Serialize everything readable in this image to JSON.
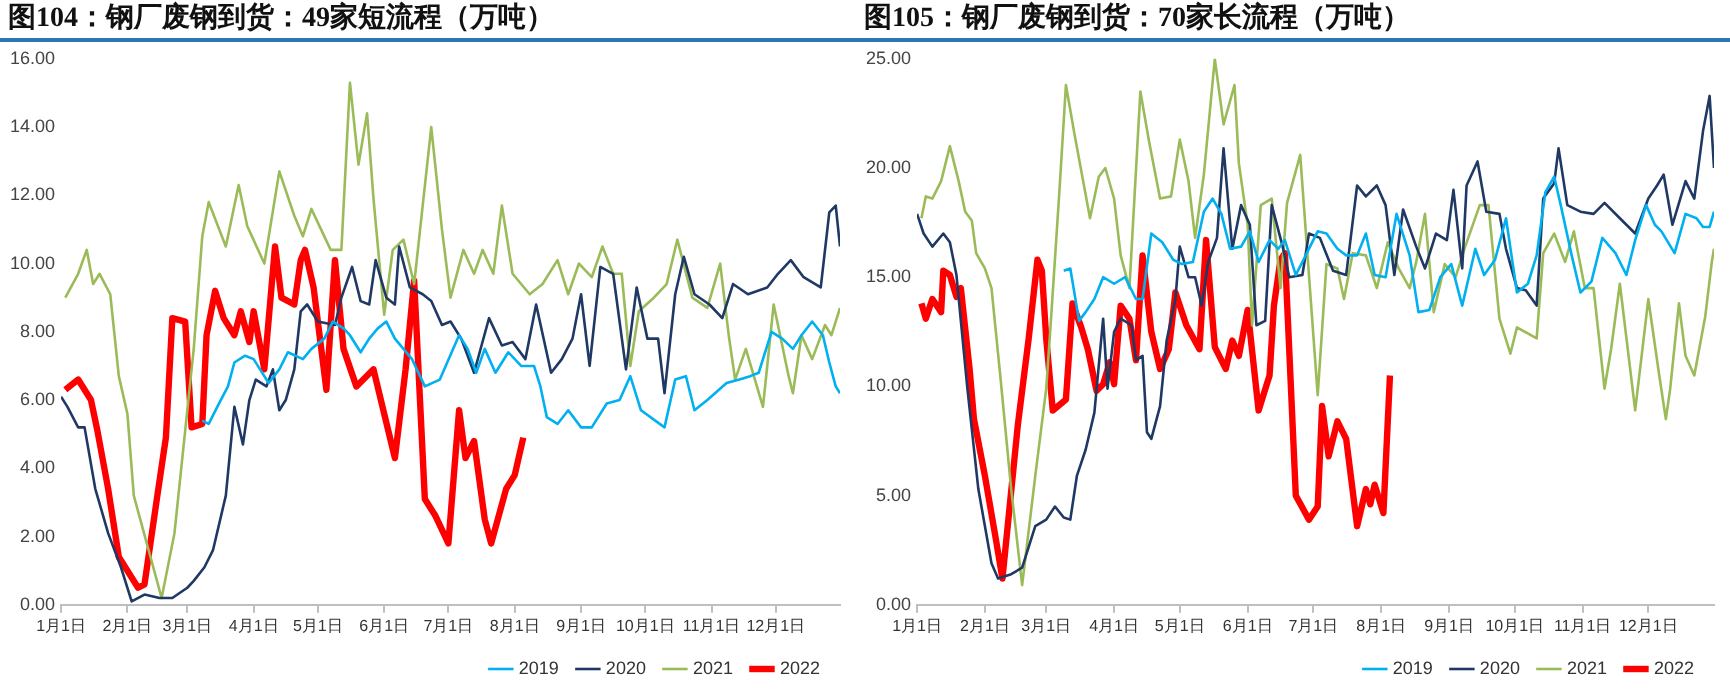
{
  "chart_data": [
    {
      "type": "line",
      "title": "图104：钢厂废钢到货：49家短流程（万吨）",
      "legend": "bottom",
      "xlim": [
        "--01-01",
        "--12-31"
      ],
      "xticks": [
        {
          "value": "--01-01",
          "label": "1月1日"
        },
        {
          "value": "--02-01",
          "label": "2月1日"
        },
        {
          "value": "--03-01",
          "label": "3月1日"
        },
        {
          "value": "--04-01",
          "label": "4月1日"
        },
        {
          "value": "--05-01",
          "label": "5月1日"
        },
        {
          "value": "--06-01",
          "label": "6月1日"
        },
        {
          "value": "--07-01",
          "label": "7月1日"
        },
        {
          "value": "--08-01",
          "label": "8月1日"
        },
        {
          "value": "--09-01",
          "label": "9月1日"
        },
        {
          "value": "--10-01",
          "label": "10月1日"
        },
        {
          "value": "--11-01",
          "label": "11月1日"
        },
        {
          "value": "--12-01",
          "label": "12月1日"
        }
      ],
      "ylim": [
        0,
        16
      ],
      "yticks": [
        {
          "value": 0,
          "label": "0.00"
        },
        {
          "value": 2,
          "label": "2.00"
        },
        {
          "value": 4,
          "label": "4.00"
        },
        {
          "value": 6,
          "label": "6.00"
        },
        {
          "value": 8,
          "label": "8.00"
        },
        {
          "value": 10,
          "label": "10.00"
        },
        {
          "value": 12,
          "label": "12.00"
        },
        {
          "value": 14,
          "label": "14.00"
        },
        {
          "value": 16,
          "label": "16.00"
        }
      ],
      "series": [
        {
          "name": "2019",
          "color": "#00b0f0",
          "x": [
            "--03-08",
            "--03-11",
            "--03-15",
            "--03-20",
            "--03-23",
            "--03-28",
            "--04-01",
            "--04-04",
            "--04-08",
            "--04-13",
            "--04-17",
            "--04-24",
            "--04-28",
            "--05-04",
            "--05-08",
            "--05-13",
            "--05-16",
            "--05-21",
            "--05-25",
            "--05-29",
            "--06-02",
            "--06-06",
            "--06-14",
            "--06-20",
            "--06-27",
            "--07-06",
            "--07-10",
            "--07-14",
            "--07-18",
            "--07-23",
            "--07-29",
            "--08-04",
            "--08-10",
            "--08-13",
            "--08-16",
            "--08-21",
            "--08-26",
            "--09-01",
            "--09-06",
            "--09-13",
            "--09-19",
            "--09-24",
            "--09-29",
            "--10-10",
            "--10-15",
            "--10-20",
            "--10-24",
            "--10-30",
            "--11-08",
            "--11-14",
            "--11-19",
            "--11-23",
            "--11-29",
            "--12-04",
            "--12-09",
            "--12-13",
            "--12-18",
            "--12-23",
            "--12-26",
            "--12-29",
            "--12-31"
          ],
          "values": [
            5.4,
            5.3,
            5.8,
            6.4,
            7.1,
            7.3,
            7.2,
            6.9,
            6.5,
            6.9,
            7.4,
            7.2,
            7.5,
            7.8,
            8.3,
            8.1,
            7.9,
            7.4,
            7.8,
            8.1,
            8.3,
            7.8,
            7.2,
            6.4,
            6.6,
            7.9,
            7.5,
            6.8,
            7.5,
            6.8,
            7.4,
            7.0,
            7.0,
            6.4,
            5.5,
            5.3,
            5.7,
            5.2,
            5.2,
            5.9,
            6.0,
            6.7,
            5.7,
            5.2,
            6.6,
            6.7,
            5.7,
            6.0,
            6.5,
            6.6,
            6.7,
            6.8,
            8.0,
            7.8,
            7.5,
            7.9,
            8.3,
            7.9,
            7.1,
            6.4,
            6.2
          ]
        },
        {
          "name": "2020",
          "color": "#1f3864",
          "x": [
            "--01-01",
            "--01-04",
            "--01-09",
            "--01-12",
            "--01-17",
            "--01-23",
            "--01-29",
            "--02-03",
            "--02-09",
            "--02-16",
            "--02-22",
            "--03-01",
            "--03-04",
            "--03-09",
            "--03-13",
            "--03-19",
            "--03-23",
            "--03-27",
            "--03-30",
            "--04-02",
            "--04-07",
            "--04-10",
            "--04-13",
            "--04-16",
            "--04-20",
            "--04-23",
            "--04-26",
            "--05-01",
            "--05-09",
            "--05-12",
            "--05-17",
            "--05-21",
            "--05-25",
            "--05-28",
            "--06-02",
            "--06-06",
            "--06-08",
            "--06-13",
            "--06-19",
            "--06-23",
            "--06-28",
            "--07-02",
            "--07-07",
            "--07-13",
            "--07-20",
            "--07-26",
            "--07-31",
            "--08-06",
            "--08-11",
            "--08-18",
            "--08-23",
            "--08-28",
            "--09-01",
            "--09-05",
            "--09-10",
            "--09-16",
            "--09-22",
            "--09-27",
            "--10-02",
            "--10-07",
            "--10-10",
            "--10-15",
            "--10-19",
            "--10-24",
            "--10-31",
            "--11-06",
            "--11-11",
            "--11-18",
            "--11-27",
            "--12-02",
            "--12-08",
            "--12-14",
            "--12-22",
            "--12-26",
            "--12-29",
            "--12-31"
          ],
          "values": [
            6.1,
            5.8,
            5.2,
            5.2,
            3.4,
            2.1,
            1.1,
            0.1,
            0.3,
            0.2,
            0.2,
            0.5,
            0.7,
            1.1,
            1.6,
            3.2,
            5.8,
            4.7,
            6.0,
            6.6,
            6.4,
            6.9,
            5.7,
            6.0,
            6.9,
            8.6,
            8.8,
            8.3,
            8.2,
            9.0,
            9.9,
            8.9,
            8.8,
            10.1,
            9.0,
            8.8,
            10.5,
            9.3,
            9.1,
            8.9,
            8.2,
            8.3,
            7.8,
            6.8,
            8.4,
            7.6,
            7.7,
            7.2,
            8.8,
            6.8,
            7.2,
            7.8,
            9.1,
            7.0,
            9.9,
            9.7,
            6.9,
            9.3,
            7.8,
            7.8,
            6.2,
            9.1,
            10.2,
            9.1,
            8.8,
            8.4,
            9.4,
            9.1,
            9.3,
            9.7,
            10.1,
            9.6,
            9.3,
            11.5,
            11.7,
            10.5
          ]
        },
        {
          "name": "2021",
          "color": "#9bbb59",
          "x": [
            "--01-03",
            "--01-09",
            "--01-13",
            "--01-16",
            "--01-19",
            "--01-24",
            "--01-28",
            "--02-01",
            "--02-04",
            "--02-17",
            "--02-23",
            "--03-04",
            "--03-08",
            "--03-11",
            "--03-19",
            "--03-25",
            "--03-29",
            "--04-06",
            "--04-13",
            "--04-20",
            "--04-24",
            "--04-28",
            "--05-07",
            "--05-12",
            "--05-16",
            "--05-20",
            "--05-24",
            "--05-27",
            "--06-01",
            "--06-05",
            "--06-10",
            "--06-15",
            "--06-23",
            "--06-28",
            "--07-02",
            "--07-08",
            "--07-13",
            "--07-17",
            "--07-22",
            "--07-26",
            "--07-31",
            "--08-08",
            "--08-14",
            "--08-21",
            "--08-26",
            "--08-31",
            "--09-06",
            "--09-11",
            "--09-16",
            "--09-20",
            "--09-24",
            "--09-28",
            "--10-05",
            "--10-11",
            "--10-16",
            "--10-23",
            "--10-30",
            "--11-05",
            "--11-09",
            "--11-12",
            "--11-17",
            "--11-25",
            "--11-30",
            "--12-07",
            "--12-09",
            "--12-13",
            "--12-18",
            "--12-24",
            "--12-27",
            "--12-31"
          ],
          "values": [
            9.0,
            9.7,
            10.4,
            9.4,
            9.7,
            9.1,
            6.7,
            5.6,
            3.2,
            0.2,
            2.1,
            7.5,
            10.8,
            11.8,
            10.5,
            12.3,
            11.1,
            10.0,
            12.7,
            11.4,
            10.8,
            11.6,
            10.4,
            10.4,
            15.3,
            12.9,
            14.4,
            11.9,
            8.5,
            10.4,
            10.7,
            9.4,
            14.0,
            11.0,
            9.0,
            10.4,
            9.7,
            10.4,
            9.7,
            11.7,
            9.7,
            9.1,
            9.4,
            10.1,
            9.1,
            10.0,
            9.6,
            10.5,
            9.7,
            9.7,
            7.0,
            8.6,
            9.0,
            9.4,
            10.7,
            9.0,
            8.7,
            10.0,
            7.9,
            6.6,
            7.5,
            5.8,
            8.8,
            6.7,
            6.2,
            7.9,
            7.2,
            8.2,
            7.9,
            8.7
          ]
        },
        {
          "name": "2022",
          "color": "#ff0000",
          "x": [
            "--01-03",
            "--01-09",
            "--01-15",
            "--01-18",
            "--01-23",
            "--01-28",
            "--02-06",
            "--02-09",
            "--02-15",
            "--02-19",
            "--02-22",
            "--02-28",
            "--03-03",
            "--03-08",
            "--03-10",
            "--03-14",
            "--03-18",
            "--03-23",
            "--03-26",
            "--03-30",
            "--04-01",
            "--04-06",
            "--04-11",
            "--04-14",
            "--04-20",
            "--04-23",
            "--04-25",
            "--04-29",
            "--05-05",
            "--05-09",
            "--05-13",
            "--05-19",
            "--05-27",
            "--06-01",
            "--06-06",
            "--06-11",
            "--06-15",
            "--06-20",
            "--06-25",
            "--07-01",
            "--07-06",
            "--07-09",
            "--07-13",
            "--07-18",
            "--07-21",
            "--07-28",
            "--08-01",
            "--08-05"
          ],
          "values": [
            6.3,
            6.6,
            6.0,
            5.1,
            3.4,
            1.4,
            0.5,
            0.6,
            3.2,
            4.9,
            8.4,
            8.3,
            5.2,
            5.3,
            7.9,
            9.2,
            8.4,
            7.9,
            8.6,
            7.7,
            8.6,
            6.9,
            10.5,
            9.0,
            8.8,
            10.1,
            10.4,
            9.3,
            6.3,
            10.1,
            7.5,
            6.4,
            6.9,
            5.6,
            4.3,
            6.9,
            9.5,
            3.1,
            2.6,
            1.8,
            5.7,
            4.3,
            4.8,
            2.5,
            1.8,
            3.4,
            3.8,
            4.9
          ]
        }
      ]
    },
    {
      "type": "line",
      "title": "图105：钢厂废钢到货：70家长流程（万吨）",
      "legend": "bottom",
      "xlim": [
        "--01-01",
        "--12-31"
      ],
      "xticks": [
        {
          "value": "--01-01",
          "label": "1月1日"
        },
        {
          "value": "--02-01",
          "label": "2月1日"
        },
        {
          "value": "--03-01",
          "label": "3月1日"
        },
        {
          "value": "--04-01",
          "label": "4月1日"
        },
        {
          "value": "--05-01",
          "label": "5月1日"
        },
        {
          "value": "--06-01",
          "label": "6月1日"
        },
        {
          "value": "--07-01",
          "label": "7月1日"
        },
        {
          "value": "--08-01",
          "label": "8月1日"
        },
        {
          "value": "--09-01",
          "label": "9月1日"
        },
        {
          "value": "--10-01",
          "label": "10月1日"
        },
        {
          "value": "--11-01",
          "label": "11月1日"
        },
        {
          "value": "--12-01",
          "label": "12月1日"
        }
      ],
      "ylim": [
        0,
        25
      ],
      "yticks": [
        {
          "value": 0,
          "label": "0.00"
        },
        {
          "value": 5,
          "label": "5.00"
        },
        {
          "value": 10,
          "label": "10.00"
        },
        {
          "value": 15,
          "label": "15.00"
        },
        {
          "value": 20,
          "label": "20.00"
        },
        {
          "value": 25,
          "label": "25.00"
        }
      ],
      "series": [
        {
          "name": "2019",
          "color": "#00b0f0",
          "x": [
            "--03-09",
            "--03-12",
            "--03-16",
            "--03-19",
            "--03-23",
            "--03-27",
            "--04-01",
            "--04-06",
            "--04-11",
            "--04-14",
            "--04-18",
            "--04-23",
            "--04-28",
            "--05-02",
            "--05-07",
            "--05-12",
            "--05-16",
            "--05-20",
            "--05-24",
            "--05-29",
            "--06-02",
            "--06-06",
            "--06-11",
            "--06-15",
            "--06-18",
            "--06-23",
            "--06-28",
            "--07-03",
            "--07-07",
            "--07-12",
            "--07-16",
            "--07-21",
            "--07-25",
            "--07-29",
            "--08-03",
            "--08-08",
            "--08-14",
            "--08-18",
            "--08-23",
            "--08-28",
            "--09-02",
            "--09-07",
            "--09-13",
            "--09-17",
            "--09-22",
            "--09-27",
            "--10-02",
            "--10-07",
            "--10-11",
            "--10-15",
            "--10-19",
            "--10-22",
            "--10-27",
            "--10-31",
            "--11-05",
            "--11-10",
            "--11-16",
            "--11-21",
            "--11-25",
            "--11-30",
            "--12-04",
            "--12-07",
            "--12-13",
            "--12-18",
            "--12-23",
            "--12-26",
            "--12-29",
            "--12-31"
          ],
          "values": [
            15.3,
            15.4,
            13.0,
            13.4,
            14.0,
            15.0,
            14.7,
            15.0,
            14.0,
            14.0,
            17.0,
            16.6,
            15.8,
            15.6,
            15.7,
            18.0,
            18.6,
            17.9,
            16.3,
            16.4,
            17.1,
            15.7,
            16.7,
            16.3,
            16.7,
            15.1,
            16.1,
            17.1,
            17.0,
            16.3,
            16.0,
            16.0,
            17.0,
            15.1,
            15.0,
            17.9,
            16.0,
            13.4,
            13.5,
            15.0,
            15.6,
            13.7,
            16.3,
            15.1,
            15.8,
            17.7,
            14.3,
            14.7,
            16.0,
            18.9,
            19.6,
            18.3,
            16.0,
            14.3,
            14.8,
            16.8,
            16.1,
            15.1,
            16.7,
            18.3,
            17.4,
            17.1,
            16.1,
            17.9,
            17.7,
            17.3,
            17.3,
            18.0
          ]
        },
        {
          "name": "2020",
          "color": "#1f3864",
          "x": [
            "--01-01",
            "--01-04",
            "--01-08",
            "--01-13",
            "--01-16",
            "--01-19",
            "--01-24",
            "--01-29",
            "--02-04",
            "--02-07",
            "--02-13",
            "--02-18",
            "--02-24",
            "--03-01",
            "--03-05",
            "--03-09",
            "--03-12",
            "--03-15",
            "--03-19",
            "--03-23",
            "--03-27",
            "--03-29",
            "--04-01",
            "--04-04",
            "--04-09",
            "--04-11",
            "--04-14",
            "--04-16",
            "--04-18",
            "--04-22",
            "--04-25",
            "--04-29",
            "--05-01",
            "--05-05",
            "--05-08",
            "--05-11",
            "--05-14",
            "--05-18",
            "--05-21",
            "--05-25",
            "--05-29",
            "--06-02",
            "--06-05",
            "--06-09",
            "--06-12",
            "--06-17",
            "--06-20",
            "--06-26",
            "--06-29",
            "--07-04",
            "--07-10",
            "--07-16",
            "--07-21",
            "--07-25",
            "--07-30",
            "--08-03",
            "--08-07",
            "--08-11",
            "--08-17",
            "--08-21",
            "--08-26",
            "--08-31",
            "--09-03",
            "--09-07",
            "--09-09",
            "--09-14",
            "--09-18",
            "--09-24",
            "--09-27",
            "--10-02",
            "--10-06",
            "--10-11",
            "--10-14",
            "--10-19",
            "--10-21",
            "--10-25",
            "--10-31",
            "--11-06",
            "--11-11",
            "--11-18",
            "--11-25",
            "--12-01",
            "--12-05",
            "--12-08",
            "--12-12",
            "--12-18",
            "--12-22",
            "--12-26",
            "--12-29",
            "--12-31"
          ],
          "values": [
            17.9,
            17.0,
            16.4,
            17.0,
            16.6,
            15.1,
            9.9,
            5.3,
            1.9,
            1.2,
            1.4,
            1.7,
            3.6,
            3.9,
            4.5,
            4.0,
            3.9,
            5.9,
            7.1,
            8.8,
            13.1,
            9.9,
            12.5,
            13.1,
            12.8,
            11.2,
            11.4,
            7.9,
            7.6,
            9.1,
            12.1,
            14.0,
            16.4,
            15.0,
            15.0,
            13.7,
            15.7,
            16.8,
            20.9,
            16.3,
            18.3,
            17.4,
            12.8,
            13.0,
            18.3,
            16.4,
            15.0,
            15.1,
            17.0,
            16.8,
            15.3,
            15.1,
            19.2,
            18.7,
            19.2,
            18.3,
            15.1,
            18.1,
            16.4,
            15.4,
            17.0,
            16.7,
            19.0,
            15.4,
            19.2,
            20.3,
            18.0,
            17.9,
            16.3,
            14.5,
            14.4,
            13.7,
            18.6,
            19.3,
            20.9,
            18.3,
            18.0,
            17.9,
            18.4,
            17.7,
            17.0,
            18.6,
            19.2,
            19.7,
            17.4,
            19.4,
            18.6,
            21.7,
            23.3,
            20.0
          ]
        },
        {
          "name": "2021",
          "color": "#9bbb59",
          "x": [
            "--01-03",
            "--01-05",
            "--01-08",
            "--01-12",
            "--01-16",
            "--01-20",
            "--01-23",
            "--01-26",
            "--01-28",
            "--02-01",
            "--02-04",
            "--02-08",
            "--02-13",
            "--02-18",
            "--02-24",
            "--03-01",
            "--03-03",
            "--03-07",
            "--03-10",
            "--03-14",
            "--03-21",
            "--03-25",
            "--03-28",
            "--04-01",
            "--04-04",
            "--04-08",
            "--04-13",
            "--04-17",
            "--04-22",
            "--04-27",
            "--05-01",
            "--05-05",
            "--05-08",
            "--05-12",
            "--05-17",
            "--05-21",
            "--05-26",
            "--05-28",
            "--06-01",
            "--06-03",
            "--06-07",
            "--06-12",
            "--06-16",
            "--06-19",
            "--06-25",
            "--06-29",
            "--07-03",
            "--07-07",
            "--07-12",
            "--07-15",
            "--07-19",
            "--07-25",
            "--07-30",
            "--08-04",
            "--08-09",
            "--08-14",
            "--08-17",
            "--08-21",
            "--08-25",
            "--08-30",
            "--09-04",
            "--09-08",
            "--09-15",
            "--09-19",
            "--09-24",
            "--09-29",
            "--10-02",
            "--10-11",
            "--10-14",
            "--10-19",
            "--10-24",
            "--10-28",
            "--11-02",
            "--11-06",
            "--11-11",
            "--11-14",
            "--11-18",
            "--11-25",
            "--12-01",
            "--12-06",
            "--12-09",
            "--12-11",
            "--12-15",
            "--12-18",
            "--12-22",
            "--12-27",
            "--12-30",
            "--12-31"
          ],
          "values": [
            17.7,
            18.7,
            18.6,
            19.4,
            21.0,
            19.4,
            18.0,
            17.6,
            16.1,
            15.4,
            14.5,
            10.5,
            5.3,
            0.9,
            5.9,
            9.9,
            12.8,
            18.9,
            23.8,
            21.5,
            17.7,
            19.6,
            20.0,
            18.6,
            16.0,
            14.5,
            23.5,
            21.2,
            18.6,
            18.7,
            21.3,
            19.4,
            16.8,
            19.7,
            25.0,
            22.0,
            23.8,
            20.2,
            17.4,
            12.8,
            18.3,
            18.6,
            14.5,
            18.4,
            20.6,
            15.1,
            9.6,
            15.6,
            15.4,
            14.0,
            16.1,
            16.0,
            14.5,
            16.6,
            15.4,
            14.5,
            15.7,
            17.9,
            13.4,
            15.6,
            15.0,
            16.3,
            18.3,
            18.3,
            13.1,
            11.5,
            12.7,
            12.2,
            16.1,
            17.0,
            15.7,
            17.1,
            14.5,
            14.5,
            9.9,
            11.7,
            14.7,
            8.9,
            14.0,
            10.5,
            8.5,
            9.9,
            13.8,
            11.4,
            10.5,
            13.2,
            15.7,
            16.3
          ]
        },
        {
          "name": "2022",
          "color": "#ff0000",
          "x": [
            "--01-03",
            "--01-05",
            "--01-08",
            "--01-12",
            "--01-13",
            "--01-16",
            "--01-19",
            "--01-21",
            "--01-25",
            "--01-27",
            "--02-01",
            "--02-06",
            "--02-09",
            "--02-12",
            "--02-16",
            "--02-21",
            "--02-25",
            "--02-27",
            "--03-01",
            "--03-04",
            "--03-10",
            "--03-13",
            "--03-17",
            "--03-20",
            "--03-24",
            "--03-27",
            "--03-30",
            "--04-01",
            "--04-04",
            "--04-08",
            "--04-11",
            "--04-14",
            "--04-18",
            "--04-22",
            "--04-26",
            "--04-29",
            "--05-04",
            "--05-10",
            "--05-13",
            "--05-17",
            "--05-22",
            "--05-25",
            "--05-28",
            "--06-01",
            "--06-06",
            "--06-11",
            "--06-13",
            "--06-16",
            "--06-18",
            "--06-23",
            "--06-29",
            "--07-03",
            "--07-05",
            "--07-08",
            "--07-12",
            "--07-16",
            "--07-21",
            "--07-25",
            "--07-27",
            "--07-29",
            "--08-02",
            "--08-05"
          ],
          "values": [
            13.8,
            13.1,
            14.0,
            13.4,
            15.3,
            15.1,
            14.1,
            14.5,
            10.8,
            8.5,
            5.9,
            3.0,
            1.2,
            4.2,
            8.2,
            12.2,
            15.8,
            15.3,
            12.2,
            8.9,
            9.4,
            13.8,
            12.7,
            11.7,
            9.8,
            10.1,
            11.1,
            10.1,
            13.7,
            13.1,
            11.2,
            16.0,
            12.5,
            10.8,
            11.7,
            14.3,
            12.8,
            11.7,
            16.7,
            11.8,
            10.8,
            12.1,
            11.4,
            13.5,
            8.9,
            10.5,
            13.7,
            15.8,
            16.1,
            5.0,
            3.9,
            4.5,
            9.1,
            6.8,
            8.4,
            7.6,
            3.6,
            5.3,
            4.6,
            5.5,
            4.2,
            10.5
          ]
        }
      ]
    }
  ]
}
